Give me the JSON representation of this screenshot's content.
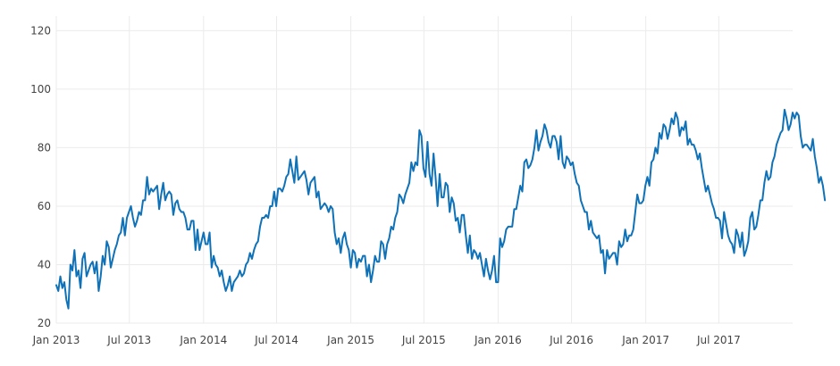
{
  "chart_data": {
    "type": "line",
    "title": "",
    "xlabel": "",
    "ylabel": "",
    "x_axis": {
      "type": "date",
      "range": [
        "2013-01-01",
        "2017-12-31"
      ],
      "ticks": [
        {
          "date": "2013-01-01",
          "label": "Jan 2013"
        },
        {
          "date": "2013-07-01",
          "label": "Jul 2013"
        },
        {
          "date": "2014-01-01",
          "label": "Jan 2014"
        },
        {
          "date": "2014-07-01",
          "label": "Jul 2014"
        },
        {
          "date": "2015-01-01",
          "label": "Jan 2015"
        },
        {
          "date": "2015-07-01",
          "label": "Jul 2015"
        },
        {
          "date": "2016-01-01",
          "label": "Jan 2016"
        },
        {
          "date": "2016-07-01",
          "label": "Jul 2016"
        },
        {
          "date": "2017-01-01",
          "label": "Jan 2017"
        },
        {
          "date": "2017-07-01",
          "label": "Jul 2017"
        }
      ]
    },
    "y_axis": {
      "range": [
        20,
        125
      ],
      "ticks": [
        20,
        40,
        60,
        80,
        100,
        120
      ]
    },
    "grid": true,
    "legend": false,
    "series": [
      {
        "color": "#0f72b8",
        "x_start": "2013-01-01",
        "x_step": "5 days",
        "values": [
          33,
          31,
          36,
          32,
          34,
          28,
          25,
          40,
          38,
          45,
          36,
          38,
          32,
          42,
          44,
          36,
          38,
          40,
          41,
          37,
          41,
          31,
          36,
          43,
          40,
          48,
          46,
          39,
          42,
          45,
          47,
          50,
          51,
          56,
          50,
          56,
          58,
          60,
          56,
          53,
          55,
          58,
          57,
          62,
          62,
          70,
          64,
          66,
          65,
          66,
          67,
          59,
          64,
          68,
          62,
          64,
          65,
          64,
          57,
          61,
          62,
          59,
          58,
          58,
          56,
          52,
          52,
          55,
          55,
          45,
          52,
          45,
          48,
          51,
          47,
          47,
          51,
          39,
          43,
          40,
          39,
          36,
          38,
          34,
          31,
          33,
          36,
          31,
          34,
          35,
          36,
          38,
          36,
          37,
          40,
          41,
          44,
          42,
          45,
          47,
          48,
          53,
          56,
          56,
          57,
          56,
          60,
          60,
          65,
          60,
          66,
          66,
          65,
          67,
          70,
          71,
          76,
          72,
          68,
          77,
          69,
          70,
          71,
          72,
          69,
          64,
          68,
          69,
          70,
          63,
          65,
          59,
          60,
          61,
          60,
          58,
          60,
          59,
          51,
          47,
          49,
          44,
          49,
          51,
          47,
          45,
          39,
          45,
          44,
          39,
          42,
          41,
          43,
          43,
          36,
          40,
          34,
          38,
          43,
          41,
          41,
          48,
          47,
          42,
          47,
          49,
          53,
          52,
          56,
          58,
          64,
          63,
          61,
          64,
          66,
          68,
          75,
          72,
          75,
          74,
          86,
          84,
          73,
          70,
          82,
          71,
          67,
          78,
          70,
          60,
          71,
          63,
          63,
          68,
          67,
          58,
          63,
          61,
          55,
          56,
          51,
          57,
          57,
          50,
          44,
          50,
          42,
          45,
          44,
          42,
          44,
          40,
          36,
          42,
          38,
          35,
          38,
          43,
          34,
          34,
          49,
          46,
          48,
          52,
          53,
          53,
          53,
          59,
          59,
          63,
          67,
          65,
          75,
          76,
          73,
          74,
          76,
          80,
          86,
          79,
          82,
          84,
          88,
          86,
          82,
          80,
          84,
          84,
          82,
          76,
          84,
          75,
          73,
          77,
          76,
          74,
          75,
          71,
          68,
          67,
          62,
          60,
          58,
          58,
          52,
          55,
          51,
          50,
          49,
          50,
          44,
          45,
          37,
          45,
          42,
          43,
          44,
          44,
          40,
          48,
          46,
          47,
          52,
          48,
          50,
          50,
          52,
          58,
          64,
          61,
          61,
          62,
          67,
          70,
          67,
          75,
          76,
          80,
          78,
          85,
          83,
          88,
          87,
          83,
          86,
          90,
          88,
          92,
          90,
          84,
          87,
          86,
          89,
          81,
          83,
          81,
          81,
          79,
          76,
          78,
          73,
          69,
          65,
          67,
          64,
          61,
          59,
          56,
          56,
          55,
          49,
          58,
          54,
          50,
          48,
          47,
          44,
          52,
          50,
          46,
          51,
          43,
          45,
          48,
          56,
          58,
          52,
          53,
          57,
          62,
          62,
          68,
          72,
          69,
          70,
          75,
          77,
          81,
          83,
          85,
          86,
          93,
          90,
          86,
          88,
          92,
          90,
          92,
          91,
          84,
          80,
          81,
          81,
          80,
          79,
          83,
          77,
          73,
          68,
          70,
          67,
          62
        ]
      }
    ]
  }
}
